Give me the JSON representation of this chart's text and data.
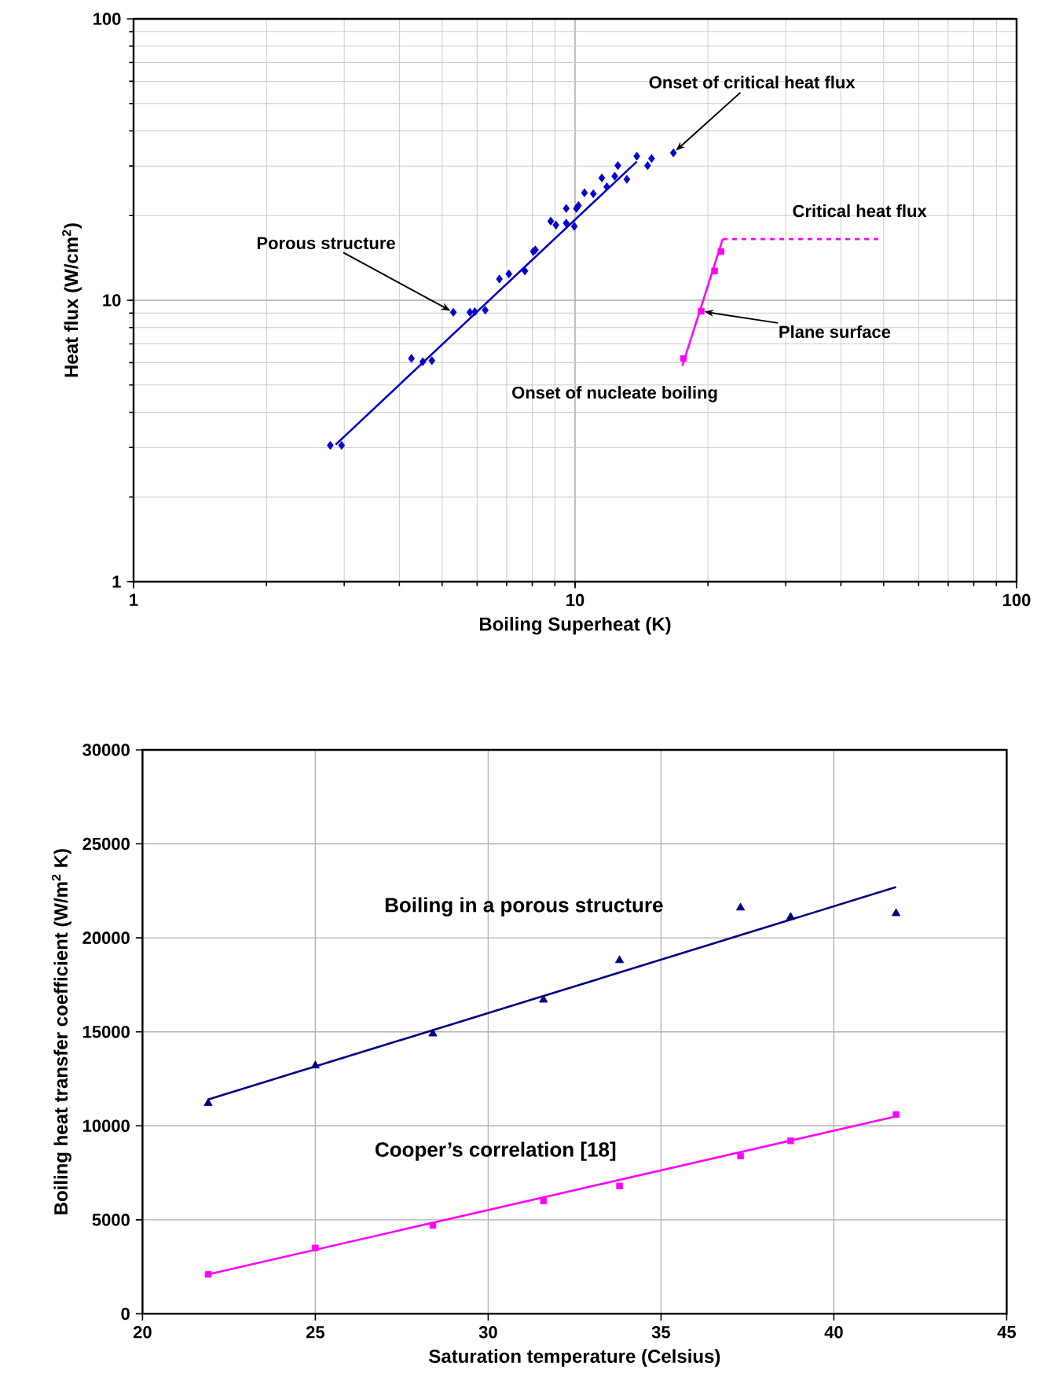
{
  "chart_data": [
    {
      "type": "scatter",
      "log": "xy",
      "grid": true,
      "xlabel": "Boiling Superheat (K)",
      "ylabel": "Heat flux (W/cm$^{2}$)",
      "xlim": [
        1,
        100
      ],
      "ylim": [
        1,
        100
      ],
      "xticks": [
        1,
        10,
        100
      ],
      "yticks": [
        1,
        10,
        100
      ],
      "annotations": [
        {
          "text": "Onset of critical heat flux",
          "x": 16.7,
          "y": 33.4
        },
        {
          "text": "Porous structure",
          "x": 5.3,
          "y": 9.06
        },
        {
          "text": "Critical heat flux",
          "x": 30,
          "y": 16.5
        },
        {
          "text": "Plane surface",
          "x": 19.3,
          "y": 9.14
        },
        {
          "text": "Onset of nucleate boiling",
          "x": 17.5,
          "y": 5.85
        }
      ],
      "series": [
        {
          "color": "#0000cc",
          "marker": "diamond",
          "x": [
            2.79,
            2.96,
            4.26,
            4.52,
            4.74,
            5.3,
            5.78,
            5.93,
            6.26,
            6.74,
            7.08,
            7.7,
            8.04,
            8.13,
            8.81,
            9.05,
            9.55,
            9.96,
            9.55,
            10.07,
            10.18,
            10.5,
            11.0,
            11.5,
            11.8,
            12.3,
            12.5,
            13.1,
            13.8,
            14.6,
            14.9,
            16.7
          ],
          "values": [
            3.05,
            3.05,
            6.21,
            6.05,
            6.1,
            9.06,
            9.06,
            9.1,
            9.22,
            11.9,
            12.4,
            12.7,
            14.9,
            15.1,
            19.1,
            18.5,
            18.8,
            18.3,
            21.2,
            21.2,
            21.7,
            24.1,
            23.9,
            27.2,
            25.3,
            27.6,
            30.1,
            26.9,
            32.5,
            30.1,
            31.9,
            33.4
          ]
        },
        {
          "type": "line",
          "color": "#0000cc",
          "marker": "none",
          "line_style": "solid",
          "x": [
            2.87,
            13.8
          ],
          "values": [
            3.07,
            31.1
          ]
        },
        {
          "color": "#ff00ff",
          "marker": "square",
          "x": [
            17.6,
            19.3,
            20.7,
            21.4
          ],
          "values": [
            6.21,
            9.14,
            12.7,
            14.9
          ]
        },
        {
          "type": "line",
          "color": "#ff00ff",
          "marker": "none",
          "line_style": "solid",
          "x": [
            17.5,
            21.6
          ],
          "values": [
            5.85,
            16.5
          ]
        },
        {
          "type": "line",
          "color": "#ff00ff",
          "marker": "none",
          "line_style": "dashed",
          "x": [
            21.6,
            48.6
          ],
          "values": [
            16.5,
            16.5
          ]
        }
      ]
    },
    {
      "type": "scatter",
      "grid": true,
      "xlabel": "Saturation temperature (Celsius)",
      "ylabel": "Boiling heat transfer coefficient (W/m$^{2}$ K)",
      "xlim": [
        20,
        45
      ],
      "ylim": [
        0,
        30000
      ],
      "xticks": [
        20,
        25,
        30,
        35,
        40,
        45
      ],
      "yticks": [
        0,
        5000,
        10000,
        15000,
        20000,
        25000,
        30000
      ],
      "series": [
        {
          "color": "#000080",
          "marker": "triangle",
          "x": [
            21.9,
            25.0,
            28.4,
            31.6,
            33.8,
            37.3,
            38.75,
            41.8
          ],
          "values": [
            11200,
            13200,
            14900,
            16700,
            18800,
            21600,
            21100,
            21300
          ]
        },
        {
          "type": "line",
          "name": "Boiling in a porous structure",
          "color": "#000080",
          "marker": "none",
          "line_style": "solid",
          "x": [
            21.9,
            41.8
          ],
          "values": [
            11400,
            22700
          ]
        },
        {
          "color": "#ff00ff",
          "marker": "square",
          "x": [
            21.9,
            25.0,
            28.4,
            31.6,
            33.8,
            37.3,
            38.75,
            41.8
          ],
          "values": [
            2100,
            3500,
            4700,
            6000,
            6800,
            8400,
            9200,
            10600
          ]
        },
        {
          "type": "line",
          "name": "Cooper’s correlation [18]",
          "color": "#ff00ff",
          "marker": "none",
          "line_style": "solid",
          "x": [
            21.9,
            41.8
          ],
          "values": [
            2100,
            10500
          ]
        }
      ]
    }
  ]
}
